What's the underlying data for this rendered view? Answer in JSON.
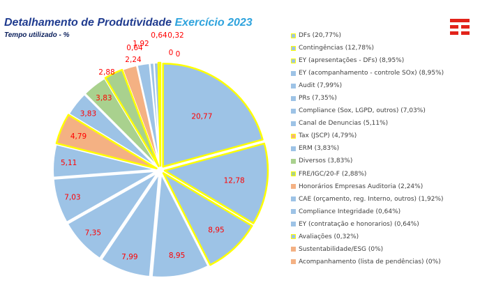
{
  "header": {
    "title": "Detalhamento de Produtividade",
    "title_year": " Exercício 2023",
    "subtitle": "Tempo utilizado - %"
  },
  "logo": {
    "icon": "tim-logo-icon",
    "color": "#e2231a"
  },
  "colors": {
    "blue": "#9dc3e6",
    "green": "#a9d18e",
    "orange": "#f4b183",
    "highlight": "#ffff00",
    "label": "#ff0000"
  },
  "legend": {
    "items": [
      {
        "label": "DFs (20,77%)",
        "color": "#9dc3e6",
        "highlight": true
      },
      {
        "label": "Contingências (12,78%)",
        "color": "#9dc3e6",
        "highlight": true
      },
      {
        "label": "EY (apresentações - DFs) (8,95%)",
        "color": "#9dc3e6",
        "highlight": true
      },
      {
        "label": "EY (acompanhamento - controle SOx) (8,95%)",
        "color": "#9dc3e6",
        "highlight": false
      },
      {
        "label": "Audit (7,99%)",
        "color": "#9dc3e6",
        "highlight": false
      },
      {
        "label": "PRs (7,35%)",
        "color": "#9dc3e6",
        "highlight": false
      },
      {
        "label": "Compliance (Sox, LGPD, outros) (7,03%)",
        "color": "#9dc3e6",
        "highlight": false
      },
      {
        "label": "Canal de Denuncias (5,11%)",
        "color": "#9dc3e6",
        "highlight": false
      },
      {
        "label": "Tax (JSCP) (4,79%)",
        "color": "#f4b183",
        "highlight": true
      },
      {
        "label": "ERM (3,83%)",
        "color": "#9dc3e6",
        "highlight": false
      },
      {
        "label": "Diversos (3,83%)",
        "color": "#a9d18e",
        "highlight": false
      },
      {
        "label": "FRE/IGC/20-F (2,88%)",
        "color": "#a9d18e",
        "highlight": true
      },
      {
        "label": "Honorários Empresas Auditoria (2,24%)",
        "color": "#f4b183",
        "highlight": false
      },
      {
        "label": "CAE (orçamento, reg. Interno, outros) (1,92%)",
        "color": "#9dc3e6",
        "highlight": false
      },
      {
        "label": "Compliance Integridade (0,64%)",
        "color": "#9dc3e6",
        "highlight": false
      },
      {
        "label": "EY (contratação e honorarios) (0,64%)",
        "color": "#9dc3e6",
        "highlight": false
      },
      {
        "label": "Avaliações (0,32%)",
        "color": "#9dc3e6",
        "highlight": true
      },
      {
        "label": "Sustentabilidade/ESG (0%)",
        "color": "#f4b183",
        "highlight": false
      },
      {
        "label": "Acompanhamento (lista de pendências) (0%)",
        "color": "#f4b183",
        "highlight": false
      }
    ]
  },
  "chart_data": {
    "type": "pie",
    "title": "Detalhamento de Produtividade Exercício 2023",
    "subtitle": "Tempo utilizado - %",
    "unit": "%",
    "start": "12 o'clock",
    "direction": "clockwise",
    "categories": [
      "DFs",
      "Contingências",
      "EY (apresentações - DFs)",
      "EY (acompanhamento - controle SOx)",
      "Audit",
      "PRs",
      "Compliance (Sox, LGPD, outros)",
      "Canal de Denuncias",
      "Tax (JSCP)",
      "ERM",
      "Diversos",
      "FRE/IGC/20-F",
      "Honorários Empresas Auditoria",
      "CAE (orçamento, reg. Interno, outros)",
      "Compliance Integridade",
      "EY (contratação e honorarios)",
      "Avaliações",
      "Sustentabilidade/ESG",
      "Acompanhamento (lista de pendências)"
    ],
    "values": [
      20.77,
      12.78,
      8.95,
      8.95,
      7.99,
      7.35,
      7.03,
      5.11,
      4.79,
      3.83,
      3.83,
      2.88,
      2.24,
      1.92,
      0.64,
      0.64,
      0.32,
      0,
      0
    ],
    "data_labels": [
      "20,77",
      "12,78",
      "8,95",
      "8,95",
      "7,99",
      "7,35",
      "7,03",
      "5,11",
      "4,79",
      "3,83",
      "3,83",
      "2,88",
      "2,24",
      "1,92",
      "0,64",
      "0,64",
      "0,32",
      "0",
      "0"
    ],
    "colors": [
      "#9dc3e6",
      "#9dc3e6",
      "#9dc3e6",
      "#9dc3e6",
      "#9dc3e6",
      "#9dc3e6",
      "#9dc3e6",
      "#9dc3e6",
      "#f4b183",
      "#9dc3e6",
      "#a9d18e",
      "#a9d18e",
      "#f4b183",
      "#9dc3e6",
      "#9dc3e6",
      "#9dc3e6",
      "#9dc3e6",
      "#f4b183",
      "#f4b183"
    ],
    "highlighted": [
      true,
      true,
      true,
      false,
      false,
      false,
      false,
      false,
      true,
      false,
      false,
      true,
      false,
      false,
      false,
      false,
      true,
      false,
      false
    ],
    "legend_position": "right"
  }
}
